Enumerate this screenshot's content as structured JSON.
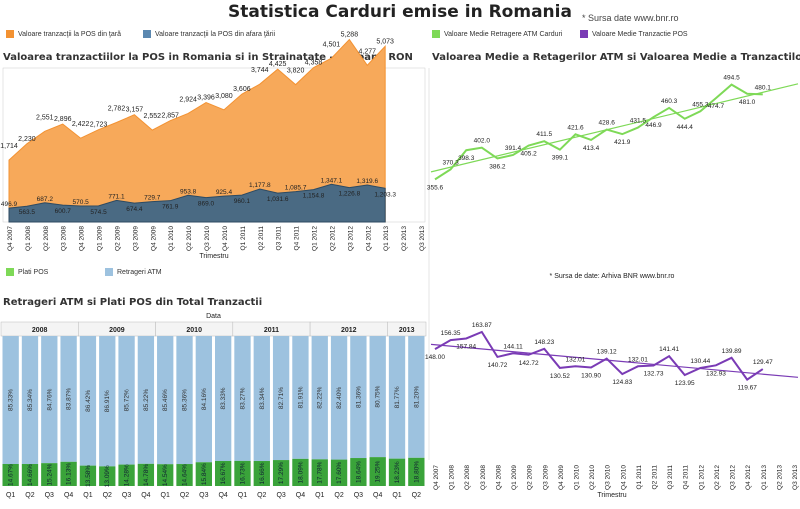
{
  "header": {
    "title": "Statistica Carduri emise in Romania",
    "source": "* Sursa date www.bnr.ro"
  },
  "legends": {
    "pos_domestic": "Valoare tranzacţii la POS din ţară",
    "pos_abroad": "Valoare tranzacţii la POS din afara ţării",
    "atm_avg": "Valoare Medie Retragere ATM Carduri",
    "pos_avg": "Valoare Medie Tranzactie POS",
    "plati_pos": "Plati POS",
    "retrageri_atm": "Retrageri ATM"
  },
  "colors": {
    "orange": "#f7a95a",
    "orange_line": "#f39232",
    "slate": "#4a6a83",
    "slate_line": "#2d4a62",
    "green": "#7ed957",
    "purple": "#7a3bb5",
    "lightblue": "#9dc2df",
    "darkgreen": "#3aa33a"
  },
  "chart_data": [
    {
      "type": "area",
      "title": "Valoarea tranzactiilor la POS in Romania si in Strainatate - Milioane RON",
      "xlabel": "Trimestru",
      "categories": [
        "Q4 2007",
        "Q1 2008",
        "Q2 2008",
        "Q3 2008",
        "Q4 2008",
        "Q1 2009",
        "Q2 2009",
        "Q3 2009",
        "Q4 2009",
        "Q1 2010",
        "Q2 2010",
        "Q3 2010",
        "Q4 2010",
        "Q1 2011",
        "Q2 2011",
        "Q3 2011",
        "Q4 2011",
        "Q1 2012",
        "Q2 2012",
        "Q3 2012",
        "Q4 2012",
        "Q1 2013",
        "Q2 2013",
        "Q3 2013"
      ],
      "ylim": [
        0,
        5500
      ],
      "series": [
        {
          "name": "Valoare tranzacţii la POS din ţară",
          "values": [
            1714,
            2230,
            2551,
            2896,
            2422,
            2723,
            2782,
            3157,
            2552,
            2857,
            2924,
            3396,
            3080,
            3606,
            3744,
            4425,
            3820,
            4358,
            4501,
            5288,
            4277,
            5073,
            null,
            null
          ],
          "labels": [
            "1,714",
            "2,230",
            "2,551",
            "2,896",
            "2,422",
            "2,723",
            "2,782",
            "3,157",
            "2,552",
            "2,857",
            "2,924",
            "3,396",
            "3,080",
            "3,606",
            "3,744",
            "4,425",
            "3,820",
            "4,358",
            "4,501",
            "5,288",
            "4,277",
            "5,073",
            "",
            ""
          ]
        },
        {
          "name": "Valoare tranzacţii la POS din afara ţării",
          "values": [
            496.9,
            563.5,
            687.2,
            600.7,
            570.5,
            574.5,
            771.1,
            674.4,
            729.7,
            761.9,
            953.8,
            869.0,
            925.4,
            960.1,
            1177.8,
            1031.6,
            1085.7,
            1154.8,
            1347.1,
            1226.8,
            1319.6,
            1203.3,
            null,
            null
          ],
          "labels": [
            "496.9",
            "563.5",
            "687.2",
            "600.7",
            "570.5",
            "574.5",
            "771.1",
            "674.4",
            "729.7",
            "761.9",
            "953.8",
            "869.0",
            "925.4",
            "960.1",
            "1,177.8",
            "1,031.6",
            "1,085.7",
            "1,154.8",
            "1,347.1",
            "1,226.8",
            "1,319.6",
            "1,203.3",
            "",
            ""
          ]
        }
      ]
    },
    {
      "type": "bar",
      "title": "Retrageri ATM si Plati POS din Total Tranzactii",
      "subtitle": "Data",
      "groups": [
        {
          "year": "2008",
          "quarters": [
            "Q1",
            "Q2",
            "Q3",
            "Q4"
          ],
          "atm": [
            "85.33%",
            "85.34%",
            "84.76%",
            "83.87%"
          ],
          "pos": [
            "14.67%",
            "14.66%",
            "15.24%",
            "16.13%"
          ]
        },
        {
          "year": "2009",
          "quarters": [
            "Q1",
            "Q2",
            "Q3",
            "Q4"
          ],
          "atm": [
            "86.42%",
            "86.91%",
            "85.72%",
            "85.22%"
          ],
          "pos": [
            "13.58%",
            "13.09%",
            "14.28%",
            "14.78%"
          ]
        },
        {
          "year": "2010",
          "quarters": [
            "Q1",
            "Q2",
            "Q3",
            "Q4"
          ],
          "atm": [
            "85.46%",
            "85.36%",
            "84.16%",
            "83.33%"
          ],
          "pos": [
            "14.54%",
            "14.64%",
            "15.84%",
            "16.67%"
          ]
        },
        {
          "year": "2011",
          "quarters": [
            "Q1",
            "Q2",
            "Q3",
            "Q4"
          ],
          "atm": [
            "83.27%",
            "83.34%",
            "82.71%",
            "81.91%"
          ],
          "pos": [
            "16.73%",
            "16.66%",
            "17.29%",
            "18.09%"
          ]
        },
        {
          "year": "2012",
          "quarters": [
            "Q1",
            "Q2",
            "Q3",
            "Q4"
          ],
          "atm": [
            "82.22%",
            "82.40%",
            "81.36%",
            "80.75%"
          ],
          "pos": [
            "17.78%",
            "17.60%",
            "18.64%",
            "19.25%"
          ]
        },
        {
          "year": "2013",
          "quarters": [
            "Q1",
            "Q2"
          ],
          "atm": [
            "81.77%",
            "81.20%"
          ],
          "pos": [
            "18.23%",
            "18.80%"
          ]
        }
      ]
    },
    {
      "type": "line",
      "title": "Valoarea Medie a Retagerilor ATM si Valoarea Medie a Tranzactilor POS",
      "xlabel": "Trimestru",
      "source": "* Sursa de date: Arhiva BNR www.bnr.ro",
      "categories": [
        "Q4 2007",
        "Q1 2008",
        "Q2 2008",
        "Q3 2008",
        "Q4 2008",
        "Q1 2009",
        "Q2 2009",
        "Q3 2009",
        "Q4 2009",
        "Q1 2010",
        "Q2 2010",
        "Q3 2010",
        "Q4 2010",
        "Q1 2011",
        "Q2 2011",
        "Q3 2011",
        "Q4 2011",
        "Q1 2012",
        "Q2 2012",
        "Q3 2012",
        "Q4 2012",
        "Q1 2013",
        "Q2 2013",
        "Q3 2013"
      ],
      "series": [
        {
          "name": "Valoare Medie Retragere ATM Carduri",
          "values": [
            355.6,
            370.3,
            398.3,
            402.0,
            386.2,
            391.4,
            405.2,
            411.5,
            399.1,
            421.6,
            413.4,
            428.6,
            421.9,
            431.5,
            446.9,
            460.3,
            444.4,
            455.3,
            474.7,
            494.5,
            481.0,
            480.1,
            null,
            null
          ],
          "labels": [
            "355.6",
            "370.3",
            "398.3",
            "402.0",
            "386.2",
            "391.4",
            "405.2",
            "411.5",
            "399.1",
            "421.6",
            "413.4",
            "428.6",
            "421.9",
            "431.5",
            "446.9",
            "460.3",
            "444.4",
            "455.3",
            "474.7",
            "494.5",
            "481.0",
            "480.1",
            "",
            ""
          ]
        },
        {
          "name": "Valoare Medie Tranzactie POS",
          "values": [
            148.0,
            156.35,
            157.84,
            163.87,
            140.72,
            144.11,
            142.72,
            148.23,
            130.52,
            132.01,
            130.9,
            139.12,
            124.83,
            132.01,
            132.73,
            141.41,
            123.95,
            130.44,
            132.93,
            139.89,
            119.67,
            129.47,
            null,
            null
          ],
          "labels": [
            "148.00",
            "156.35",
            "157.84",
            "163.87",
            "140.72",
            "144.11",
            "142.72",
            "148.23",
            "130.52",
            "132.01",
            "130.90",
            "139.12",
            "124.83",
            "132.01",
            "132.73",
            "141.41",
            "123.95",
            "130.44",
            "132.93",
            "139.89",
            "119.67",
            "129.47",
            "",
            ""
          ]
        }
      ]
    }
  ]
}
